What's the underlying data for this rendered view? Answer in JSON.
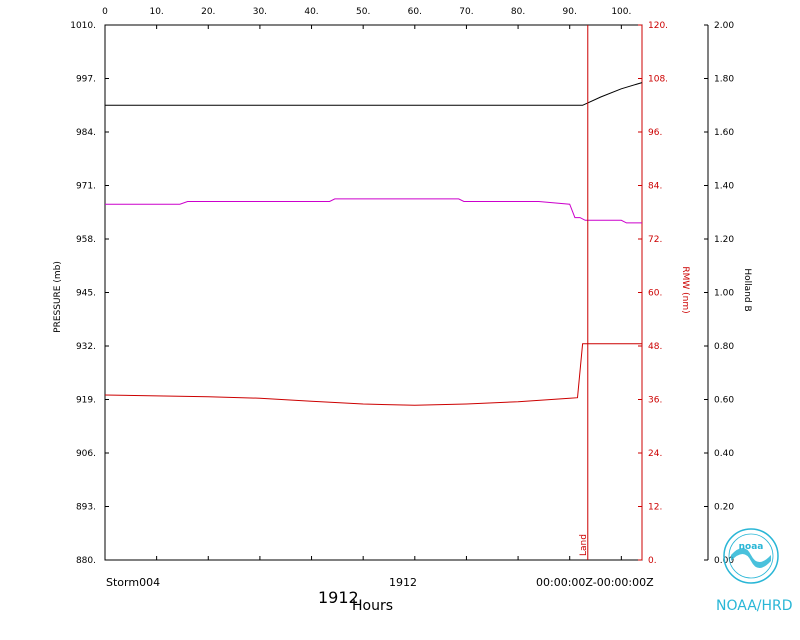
{
  "chart_data": {
    "type": "line",
    "xlabel": "Hours",
    "x_ticks": [
      0,
      10,
      20,
      30,
      40,
      50,
      60,
      70,
      80,
      90,
      100
    ],
    "xlim": [
      0,
      104
    ],
    "pressure_axis": {
      "label": "PRESSURE (mb)",
      "ylim": [
        880,
        1010
      ],
      "ticks": [
        "1010.",
        "997.",
        "984.",
        "971.",
        "958.",
        "945.",
        "932.",
        "919.",
        "906.",
        "893.",
        "880."
      ]
    },
    "rmw_axis": {
      "label": "RMW (nm)",
      "ylim": [
        0,
        120
      ],
      "ticks": [
        "120.",
        "108.",
        "96.",
        "84.",
        "72.",
        "60.",
        "48.",
        "36.",
        "24.",
        "12.",
        "0."
      ],
      "color": "#cc0000"
    },
    "holland_axis": {
      "label": "Holland B",
      "ylim": [
        0,
        2
      ],
      "ticks": [
        "2.00",
        "1.80",
        "1.60",
        "1.40",
        "1.20",
        "1.00",
        "0.80",
        "0.60",
        "0.40",
        "0.20",
        "0.00"
      ]
    },
    "series": [
      {
        "axis": "pressure",
        "color": "#000000",
        "x": [
          0,
          92.5,
          96,
          100,
          104
        ],
        "y": [
          990.5,
          990.5,
          992.5,
          994.5,
          996
        ]
      },
      {
        "axis": "holland",
        "color": "#cc00cc",
        "x": [
          0,
          14.5,
          16,
          43.5,
          44.5,
          68.5,
          69.5,
          84,
          90,
          91,
          92,
          93,
          100,
          101,
          104
        ],
        "y": [
          1.33,
          1.33,
          1.34,
          1.34,
          1.35,
          1.35,
          1.34,
          1.34,
          1.33,
          1.28,
          1.28,
          1.27,
          1.27,
          1.26,
          1.26
        ]
      },
      {
        "axis": "rmw",
        "color": "#cc0000",
        "x": [
          0,
          10,
          20,
          30,
          40,
          50,
          60,
          70,
          80,
          90,
          91.5,
          92.5,
          104
        ],
        "y": [
          37,
          36.8,
          36.6,
          36.3,
          35.6,
          35,
          34.7,
          35,
          35.5,
          36.3,
          36.4,
          48.5,
          48.5
        ]
      }
    ],
    "landfall": {
      "x": 93.5,
      "label": "Land",
      "color": "#cc0000"
    }
  },
  "footer": {
    "storm": "Storm004",
    "year": "1912",
    "date_range": "00:00:00Z-00:00:00Z",
    "year_big": "1912",
    "x_title": "Hours",
    "agency": "NOAA/HRD",
    "logo_text": "noaa"
  },
  "colors": {
    "noaa_accent": "#29b6d6",
    "rmw": "#cc0000",
    "holland": "#cc00cc",
    "pressure": "#000000"
  }
}
